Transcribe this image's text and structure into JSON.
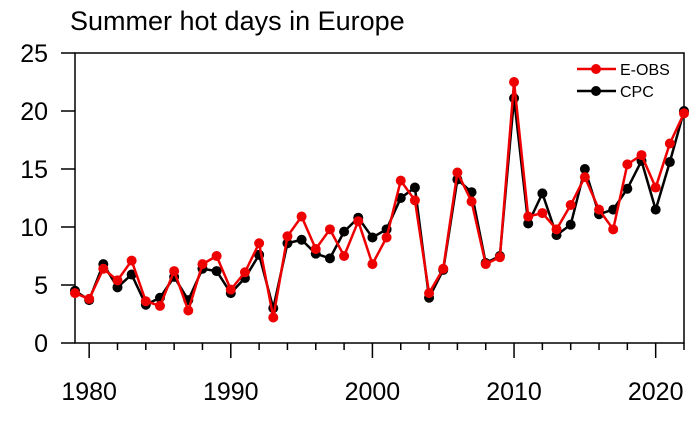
{
  "chart_data": {
    "type": "line",
    "title": "Summer hot days in Europe",
    "xlabel": "",
    "ylabel": "",
    "xlim": [
      1979,
      2022
    ],
    "ylim": [
      0,
      25
    ],
    "x_ticks": [
      1980,
      1990,
      2000,
      2010,
      2020
    ],
    "y_ticks": [
      0,
      5,
      10,
      15,
      20,
      25
    ],
    "x_tick_labels": [
      "1980",
      "1990",
      "2000",
      "2010",
      "2020"
    ],
    "y_tick_labels": [
      "0",
      "5",
      "10",
      "15",
      "20",
      "25"
    ],
    "legend_position": "top-right",
    "grid": false,
    "x": [
      1979,
      1980,
      1981,
      1982,
      1983,
      1984,
      1985,
      1986,
      1987,
      1988,
      1989,
      1990,
      1991,
      1992,
      1993,
      1994,
      1995,
      1996,
      1997,
      1998,
      1999,
      2000,
      2001,
      2002,
      2003,
      2004,
      2005,
      2006,
      2007,
      2008,
      2009,
      2010,
      2011,
      2012,
      2013,
      2014,
      2015,
      2016,
      2017,
      2018,
      2019,
      2020,
      2021,
      2022
    ],
    "series": [
      {
        "name": "CPC",
        "color": "#000000",
        "values": [
          4.5,
          3.7,
          6.8,
          4.8,
          5.9,
          3.3,
          3.9,
          5.7,
          3.7,
          6.4,
          6.2,
          4.3,
          5.6,
          7.6,
          3.0,
          8.6,
          8.9,
          7.7,
          7.3,
          9.6,
          10.8,
          9.1,
          9.8,
          12.5,
          13.4,
          3.9,
          6.3,
          14.1,
          13.0,
          6.9,
          7.5,
          21.1,
          10.3,
          12.9,
          9.3,
          10.2,
          15.0,
          11.1,
          11.5,
          13.3,
          15.7,
          11.5,
          15.6,
          20.0
        ]
      },
      {
        "name": "E-OBS",
        "color": "#ee0000",
        "values": [
          4.3,
          3.8,
          6.4,
          5.4,
          7.1,
          3.6,
          3.2,
          6.2,
          2.8,
          6.8,
          7.5,
          4.6,
          6.1,
          8.6,
          2.2,
          9.2,
          10.9,
          8.1,
          9.8,
          7.5,
          10.5,
          6.8,
          9.1,
          14.0,
          12.3,
          4.3,
          6.4,
          14.7,
          12.2,
          6.8,
          7.4,
          22.5,
          10.9,
          11.2,
          9.8,
          11.9,
          14.3,
          11.5,
          9.8,
          15.4,
          16.2,
          13.4,
          17.2,
          19.8
        ]
      }
    ],
    "legend": [
      "E-OBS",
      "CPC"
    ]
  }
}
